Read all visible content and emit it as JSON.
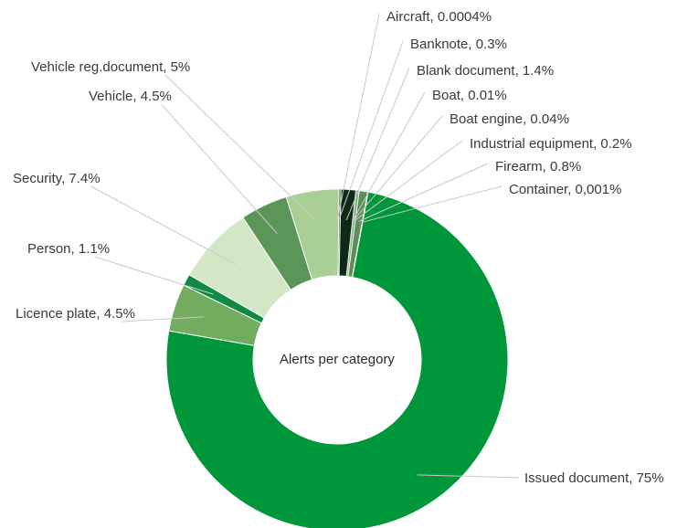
{
  "chart_data": {
    "type": "pie",
    "variant": "donut",
    "title": "Alerts per category",
    "series": [
      {
        "name": "Aircraft",
        "value": 0.0004,
        "label": "Aircraft, 0.0004%",
        "color": "#1e3d22"
      },
      {
        "name": "Banknote",
        "value": 0.3,
        "label": "Banknote, 0.3%",
        "color": "#2e6b37"
      },
      {
        "name": "Blank document",
        "value": 1.4,
        "label": "Blank document, 1.4%",
        "color": "#0f2a14"
      },
      {
        "name": "Boat",
        "value": 0.01,
        "label": "Boat, 0.01%",
        "color": "#3f7d46"
      },
      {
        "name": "Boat engine",
        "value": 0.04,
        "label": "Boat engine, 0.04%",
        "color": "#2c5e33"
      },
      {
        "name": "Industrial equipment",
        "value": 0.2,
        "label": "Industrial equipment, 0.2%",
        "color": "#5aa85f"
      },
      {
        "name": "Firearm",
        "value": 0.8,
        "label": "Firearm, 0.8%",
        "color": "#5b8f58"
      },
      {
        "name": "Container",
        "value": 0.001,
        "label": "Container, 0,001%",
        "color": "#6bb06b"
      },
      {
        "name": "Issued document",
        "value": 75,
        "label": "Issued document, 75%",
        "color": "#00973a"
      },
      {
        "name": "Licence plate",
        "value": 4.5,
        "label": "Licence plate, 4.5%",
        "color": "#72ad5f"
      },
      {
        "name": "Person",
        "value": 1.1,
        "label": "Person, 1.1%",
        "color": "#0e8a43"
      },
      {
        "name": "Security",
        "value": 7.4,
        "label": "Security, 7.4%",
        "color": "#d3e6c6"
      },
      {
        "name": "Vehicle",
        "value": 4.5,
        "label": "Vehicle, 4.5%",
        "color": "#5b9558"
      },
      {
        "name": "Vehicle reg.document",
        "value": 5,
        "label": "Vehicle reg.document, 5%",
        "color": "#a9cf95"
      }
    ]
  }
}
